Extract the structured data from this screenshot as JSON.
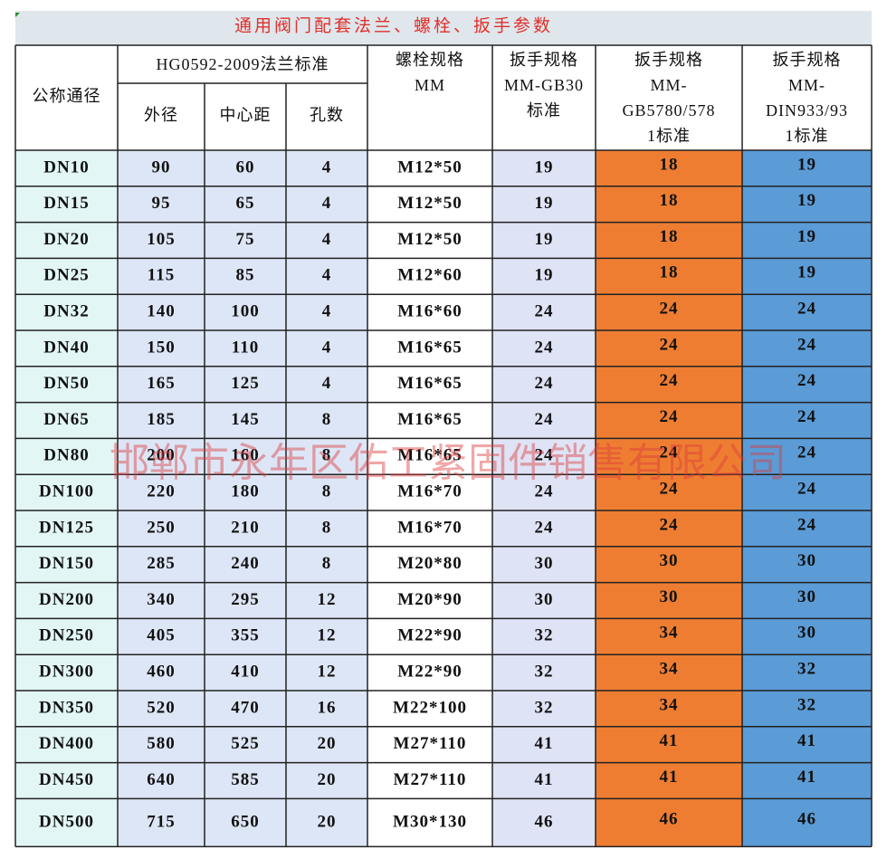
{
  "title": "通用阀门配套法兰、螺栓、扳手参数",
  "watermark": "邯郸市永年区佑工紧固件销售有限公司",
  "header": {
    "nominal": "公称通径",
    "flange": "HG0592-2009法兰标准",
    "outer": "外径",
    "center": "中心距",
    "holes": "孔数",
    "bolt": [
      "螺栓规格",
      "MM"
    ],
    "wrench_gb30": [
      "扳手规格",
      "MM-GB30",
      "标准"
    ],
    "wrench_gb5780": [
      "扳手规格",
      "MM-",
      "GB5780/578",
      "1标准"
    ],
    "wrench_din": [
      "扳手规格",
      "MM-",
      "DIN933/93",
      "1标准"
    ]
  },
  "rows": [
    [
      "DN10",
      90,
      60,
      4,
      "M12*50",
      19,
      18,
      19
    ],
    [
      "DN15",
      95,
      65,
      4,
      "M12*50",
      19,
      18,
      19
    ],
    [
      "DN20",
      105,
      75,
      4,
      "M12*50",
      19,
      18,
      19
    ],
    [
      "DN25",
      115,
      85,
      4,
      "M12*60",
      19,
      18,
      19
    ],
    [
      "DN32",
      140,
      100,
      4,
      "M16*60",
      24,
      24,
      24
    ],
    [
      "DN40",
      150,
      110,
      4,
      "M16*65",
      24,
      24,
      24
    ],
    [
      "DN50",
      165,
      125,
      4,
      "M16*65",
      24,
      24,
      24
    ],
    [
      "DN65",
      185,
      145,
      8,
      "M16*65",
      24,
      24,
      24
    ],
    [
      "DN80",
      200,
      160,
      8,
      "M16*65",
      24,
      24,
      24
    ],
    [
      "DN100",
      220,
      180,
      8,
      "M16*70",
      24,
      24,
      24
    ],
    [
      "DN125",
      250,
      210,
      8,
      "M16*70",
      24,
      24,
      24
    ],
    [
      "DN150",
      285,
      240,
      8,
      "M20*80",
      30,
      30,
      30
    ],
    [
      "DN200",
      340,
      295,
      12,
      "M20*90",
      30,
      30,
      30
    ],
    [
      "DN250",
      405,
      355,
      12,
      "M22*90",
      32,
      34,
      30
    ],
    [
      "DN300",
      460,
      410,
      12,
      "M22*90",
      32,
      34,
      32
    ],
    [
      "DN350",
      520,
      470,
      16,
      "M22*100",
      32,
      34,
      32
    ],
    [
      "DN400",
      580,
      525,
      20,
      "M27*110",
      41,
      41,
      41
    ],
    [
      "DN450",
      640,
      585,
      20,
      "M27*110",
      41,
      41,
      41
    ],
    [
      "DN500",
      715,
      650,
      20,
      "M30*130",
      46,
      46,
      46
    ]
  ]
}
